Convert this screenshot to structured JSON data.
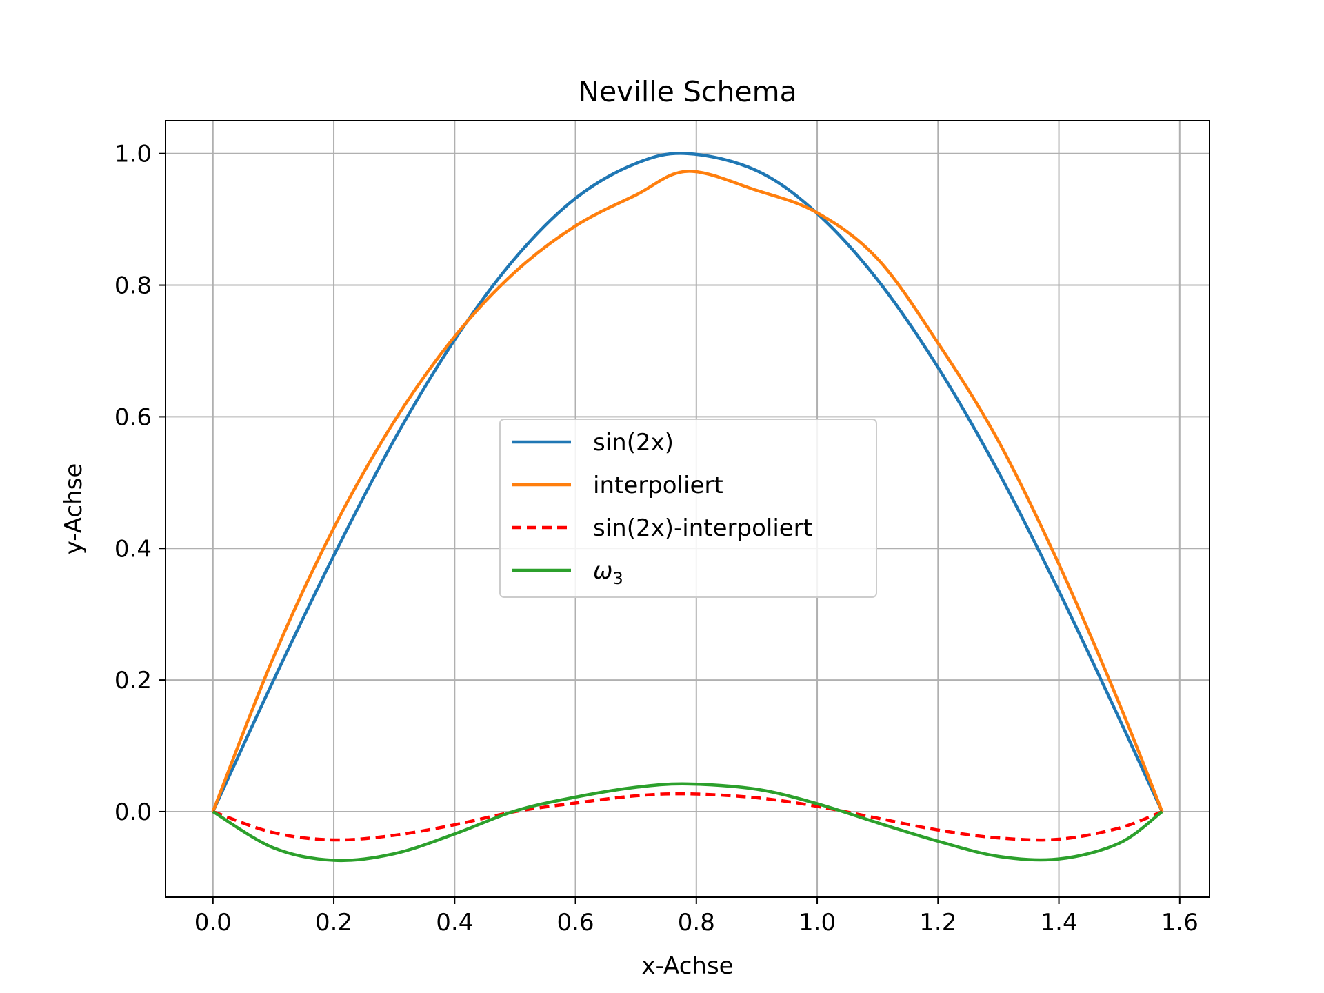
{
  "chart_data": {
    "type": "line",
    "title": "Neville Schema",
    "xlabel": "x-Achse",
    "ylabel": "y-Achse",
    "xlim": [
      -0.0785,
      1.6493
    ],
    "ylim": [
      -0.13,
      1.05
    ],
    "xticks": [
      "0.0",
      "0.2",
      "0.4",
      "0.6",
      "0.8",
      "1.0",
      "1.2",
      "1.4",
      "1.6"
    ],
    "yticks": [
      "0.0",
      "0.2",
      "0.4",
      "0.6",
      "0.8",
      "1.0"
    ],
    "grid": true,
    "legend_position": "center",
    "series": [
      {
        "name": "sin(2x)",
        "color": "#1f77b4",
        "style": "solid",
        "x": [
          0.0,
          0.1,
          0.2,
          0.3,
          0.4,
          0.5,
          0.6,
          0.7,
          0.7854,
          0.9,
          1.0,
          1.1,
          1.2,
          1.3,
          1.4,
          1.5,
          1.5708
        ],
        "y": [
          0.0,
          0.199,
          0.389,
          0.565,
          0.717,
          0.841,
          0.932,
          0.985,
          1.0,
          0.974,
          0.909,
          0.808,
          0.675,
          0.516,
          0.335,
          0.141,
          0.0
        ]
      },
      {
        "name": "interpoliert",
        "color": "#ff7f0e",
        "style": "solid",
        "x": [
          0.0,
          0.1,
          0.2,
          0.3,
          0.4,
          0.5,
          0.6,
          0.7,
          0.7854,
          0.9,
          1.0,
          1.1,
          1.2,
          1.3,
          1.4,
          1.5,
          1.5708
        ],
        "y": [
          0.0,
          0.234,
          0.431,
          0.593,
          0.722,
          0.82,
          0.89,
          0.937,
          0.973,
          0.944,
          0.91,
          0.84,
          0.712,
          0.563,
          0.376,
          0.164,
          0.0
        ]
      },
      {
        "name": "sin(2x)-interpoliert",
        "color": "#ff0000",
        "style": "dashed",
        "x": [
          0.0,
          0.1,
          0.2,
          0.3,
          0.4,
          0.5,
          0.6,
          0.7,
          0.7854,
          0.9,
          1.0,
          1.1,
          1.2,
          1.3,
          1.4,
          1.5,
          1.5708
        ],
        "y": [
          0.0,
          -0.032,
          -0.043,
          -0.036,
          -0.02,
          0.0,
          0.013,
          0.024,
          0.027,
          0.021,
          0.008,
          -0.01,
          -0.028,
          -0.04,
          -0.042,
          -0.025,
          0.0
        ]
      },
      {
        "name": "ω3",
        "color": "#2ca02c",
        "style": "solid",
        "x": [
          0.0,
          0.1,
          0.2,
          0.3,
          0.4,
          0.5,
          0.6,
          0.7,
          0.7854,
          0.9,
          1.0,
          1.1,
          1.2,
          1.3,
          1.4,
          1.5,
          1.5708
        ],
        "y": [
          0.0,
          -0.055,
          -0.074,
          -0.064,
          -0.034,
          0.001,
          0.022,
          0.037,
          0.042,
          0.034,
          0.012,
          -0.017,
          -0.045,
          -0.068,
          -0.072,
          -0.048,
          0.0
        ]
      }
    ]
  }
}
